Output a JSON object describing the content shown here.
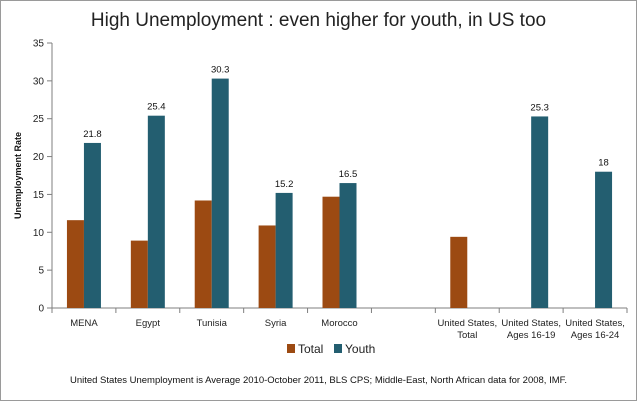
{
  "title": "High Unemployment : even higher for youth, in US too",
  "footnote": "United States Unemployment is Average 2010-October 2011, BLS CPS; Middle-East, North African data for 2008, IMF.",
  "colors": {
    "total": "#9c4a12",
    "youth": "#235e70"
  },
  "chart_data": {
    "type": "bar",
    "title": "High Unemployment : even higher for youth, in US too",
    "xlabel": "",
    "ylabel": "Unemployment Rate",
    "ylim": [
      0,
      35
    ],
    "yticks": [
      0,
      5,
      10,
      15,
      20,
      25,
      30,
      35
    ],
    "grid": false,
    "legend_position": "bottom",
    "categories": [
      [
        "MENA"
      ],
      [
        "Egypt"
      ],
      [
        "Tunisia"
      ],
      [
        "Syria"
      ],
      [
        "Morocco"
      ],
      [
        ""
      ],
      [
        "United States,",
        "Total"
      ],
      [
        "United States,",
        "Ages 16-19"
      ],
      [
        "United States,",
        "Ages 16-24"
      ]
    ],
    "series": [
      {
        "name": "Total",
        "values": [
          11.6,
          8.9,
          14.2,
          10.9,
          14.7,
          null,
          9.4,
          null,
          null
        ],
        "labels": [
          null,
          null,
          null,
          null,
          null,
          null,
          null,
          null,
          null
        ]
      },
      {
        "name": "Youth",
        "values": [
          21.8,
          25.4,
          30.3,
          15.2,
          16.5,
          null,
          null,
          25.3,
          18
        ],
        "labels": [
          "21.8",
          "25.4",
          "30.3",
          "15.2",
          "16.5",
          null,
          null,
          "25.3",
          "18"
        ]
      }
    ]
  }
}
